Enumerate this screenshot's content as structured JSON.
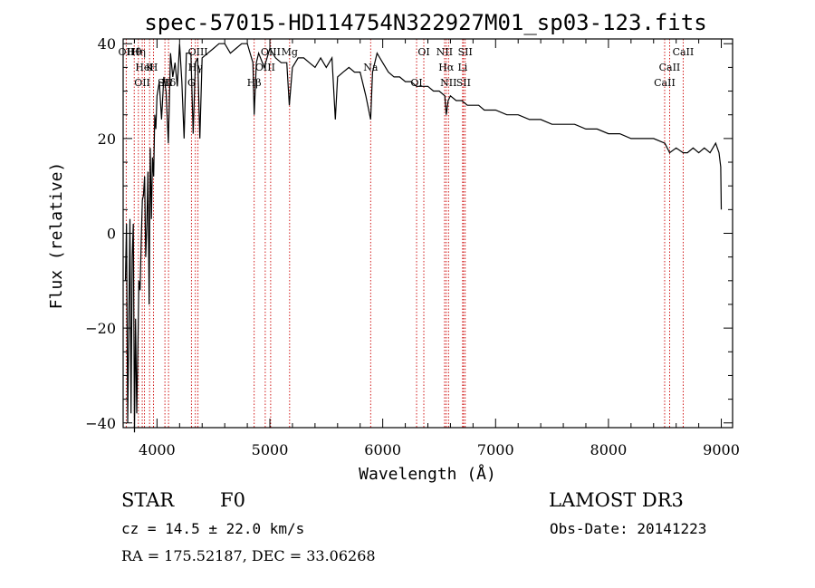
{
  "chart_data": {
    "type": "line",
    "title": "spec-57015-HD114754N322927M01_sp03-123.fits",
    "xlabel": "Wavelength (Å)",
    "ylabel": "Flux (relative)",
    "xlim": [
      3700,
      9100
    ],
    "ylim": [
      -41,
      41
    ],
    "xticks": [
      4000,
      5000,
      6000,
      7000,
      8000,
      9000
    ],
    "yticks": [
      -40,
      -20,
      0,
      20,
      40
    ],
    "series": [
      {
        "name": "spectrum",
        "x": [
          3720,
          3730,
          3740,
          3750,
          3760,
          3770,
          3780,
          3790,
          3800,
          3810,
          3820,
          3830,
          3840,
          3850,
          3860,
          3870,
          3880,
          3890,
          3900,
          3910,
          3920,
          3930,
          3940,
          3950,
          3960,
          3970,
          3980,
          3990,
          4000,
          4020,
          4040,
          4060,
          4080,
          4100,
          4120,
          4140,
          4160,
          4180,
          4200,
          4220,
          4240,
          4260,
          4280,
          4300,
          4320,
          4340,
          4360,
          4380,
          4400,
          4450,
          4500,
          4550,
          4600,
          4650,
          4700,
          4750,
          4800,
          4850,
          4861,
          4880,
          4900,
          4950,
          5000,
          5050,
          5100,
          5150,
          5172,
          5200,
          5250,
          5300,
          5350,
          5400,
          5450,
          5500,
          5550,
          5580,
          5600,
          5650,
          5700,
          5750,
          5800,
          5850,
          5893,
          5910,
          5950,
          6000,
          6050,
          6100,
          6150,
          6200,
          6250,
          6300,
          6350,
          6400,
          6450,
          6500,
          6550,
          6563,
          6580,
          6600,
          6650,
          6700,
          6750,
          6800,
          6850,
          6900,
          6950,
          7000,
          7100,
          7200,
          7300,
          7400,
          7500,
          7600,
          7700,
          7800,
          7900,
          8000,
          8100,
          8200,
          8300,
          8400,
          8500,
          8542,
          8600,
          8662,
          8700,
          8750,
          8800,
          8850,
          8900,
          8950,
          8980,
          8995,
          9000
        ],
        "values": [
          -10,
          2,
          -40,
          -20,
          3,
          -38,
          -5,
          2,
          -42,
          -18,
          -38,
          -25,
          -10,
          -12,
          -2,
          7,
          8,
          12,
          -5,
          2,
          13,
          -15,
          18,
          3,
          16,
          12,
          25,
          22,
          29,
          32,
          24,
          33,
          30,
          19,
          38,
          33,
          36,
          31,
          40,
          32,
          20,
          38,
          38,
          38,
          21,
          36,
          37,
          20,
          37,
          38,
          39,
          40,
          40,
          38,
          39,
          40,
          40,
          36,
          25,
          36,
          38,
          35,
          39,
          37,
          36,
          36,
          27,
          35,
          37,
          37,
          36,
          35,
          37,
          35,
          37,
          24,
          33,
          34,
          35,
          34,
          34,
          29,
          24,
          34,
          38,
          36,
          34,
          33,
          33,
          32,
          32,
          31,
          31,
          31,
          30,
          30,
          29,
          25,
          28,
          29,
          28,
          28,
          27,
          27,
          27,
          26,
          26,
          26,
          25,
          25,
          24,
          24,
          23,
          23,
          23,
          22,
          22,
          21,
          21,
          20,
          20,
          20,
          19,
          17,
          18,
          17,
          17,
          18,
          17,
          18,
          17,
          19,
          17,
          14,
          5
        ]
      }
    ],
    "line_markers": [
      {
        "name": "Hθ",
        "x": 3798
      },
      {
        "name": "K",
        "x": 3934
      },
      {
        "name": "Hδ",
        "x": 4102
      },
      {
        "name": "OII",
        "x": 3727
      },
      {
        "name": "HeI",
        "x": 3889
      },
      {
        "name": "SII",
        "x": 4070
      },
      {
        "name": "OIII",
        "x": 4363
      },
      {
        "name": "Hγ",
        "x": 4340
      },
      {
        "name": "OII",
        "x": 3869
      },
      {
        "name": "Hη",
        "x": 3835
      },
      {
        "name": "H",
        "x": 3969
      },
      {
        "name": "G",
        "x": 4305
      },
      {
        "name": "OIII",
        "x": 5007
      },
      {
        "name": "OIII",
        "x": 4959
      },
      {
        "name": "Hβ",
        "x": 4861
      },
      {
        "name": "Mg",
        "x": 5175
      },
      {
        "name": "Na",
        "x": 5893
      },
      {
        "name": "OI",
        "x": 6300
      },
      {
        "name": "OI",
        "x": 6364
      },
      {
        "name": "Hα",
        "x": 6563
      },
      {
        "name": "SII",
        "x": 6716
      },
      {
        "name": "NII",
        "x": 6548
      },
      {
        "name": "Li",
        "x": 6708
      },
      {
        "name": "NII",
        "x": 6583
      },
      {
        "name": "SII",
        "x": 6731
      },
      {
        "name": "CaII",
        "x": 8542
      },
      {
        "name": "CaII",
        "x": 8498
      },
      {
        "name": "CaII",
        "x": 8662
      }
    ],
    "grid": false
  },
  "info": {
    "class": "STAR",
    "subclass": "F0",
    "survey": "LAMOST DR3",
    "cz": "cz = 14.5 ± 22.0 km/s",
    "obs_date": "Obs-Date: 20141223",
    "radec": "RA = 175.52187, DEC =  33.06268"
  },
  "colors": {
    "line": "#000000",
    "marker": "#cc0000"
  }
}
